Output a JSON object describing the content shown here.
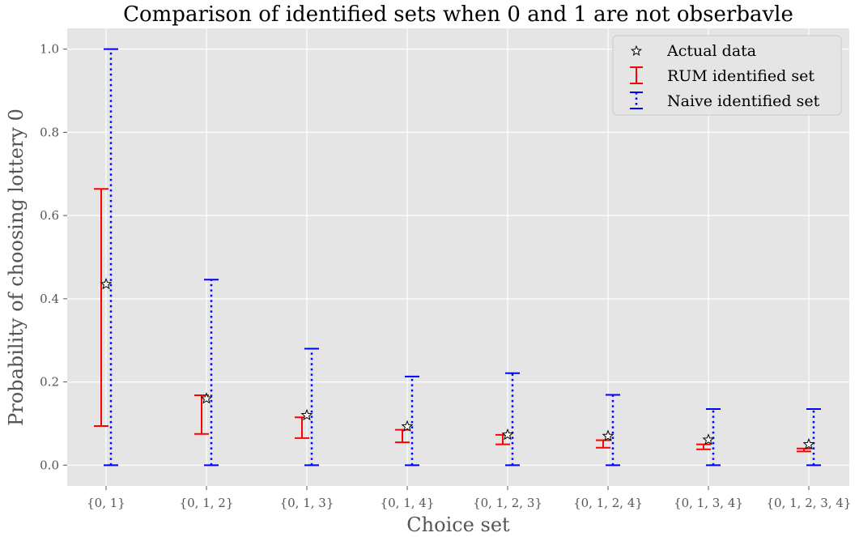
{
  "chart_data": {
    "type": "errorbar",
    "title": "Comparison of identified sets when 0 and 1 are not obserbavle",
    "xlabel": "Choice set",
    "ylabel": "Probability of choosing lottery 0",
    "categories": [
      "{0, 1}",
      "{0, 1, 2}",
      "{0, 1, 3}",
      "{0, 1, 4}",
      "{0, 1, 2, 3}",
      "{0, 1, 2, 4}",
      "{0, 1, 3, 4}",
      "{0, 1, 2, 3, 4}"
    ],
    "ylim": [
      -0.05,
      1.05
    ],
    "yticks": [
      0.0,
      0.2,
      0.4,
      0.6,
      0.8,
      1.0
    ],
    "ytick_labels": [
      "0.0",
      "0.2",
      "0.4",
      "0.6",
      "0.8",
      "1.0"
    ],
    "grid": true,
    "legend_position": "top-right",
    "series": [
      {
        "name": "Actual data",
        "kind": "points",
        "marker": "star",
        "color": "#000000",
        "values": [
          0.435,
          0.16,
          0.12,
          0.093,
          0.073,
          0.07,
          0.061,
          0.05
        ]
      },
      {
        "name": "RUM identified set",
        "kind": "interval",
        "color": "#ff0000",
        "linestyle": "solid",
        "lower": [
          0.094,
          0.075,
          0.065,
          0.055,
          0.05,
          0.042,
          0.038,
          0.033
        ],
        "upper": [
          0.664,
          0.168,
          0.115,
          0.085,
          0.073,
          0.06,
          0.05,
          0.04
        ]
      },
      {
        "name": "Naive identified set",
        "kind": "interval",
        "color": "#0000ff",
        "linestyle": "dotted",
        "lower": [
          0.0,
          0.0,
          0.0,
          0.0,
          0.0,
          0.0,
          0.0,
          0.0
        ],
        "upper": [
          1.0,
          0.446,
          0.28,
          0.213,
          0.221,
          0.169,
          0.135,
          0.135
        ]
      }
    ]
  }
}
